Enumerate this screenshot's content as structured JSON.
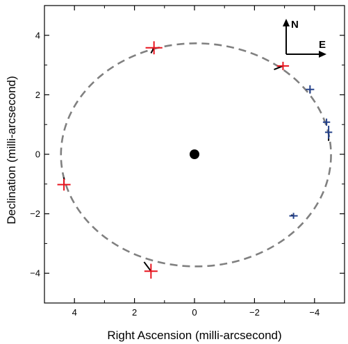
{
  "chart_data": {
    "type": "scatter",
    "title": "",
    "xlabel": "Right Ascension (milli-arcsecond)",
    "ylabel": "Declination (milli-arcsecond)",
    "xlim": [
      -5,
      5
    ],
    "ylim": [
      -5,
      5
    ],
    "x_ticks": [
      -4,
      -2,
      0,
      2,
      4
    ],
    "y_ticks": [
      -4,
      -2,
      0,
      2,
      4
    ],
    "x_tick_labels": [
      "−4",
      "−2",
      "0",
      "2",
      "4"
    ],
    "y_tick_labels": [
      "−4",
      "−2",
      "0",
      "2",
      "4"
    ],
    "x_axis_reversed": true,
    "grid": false,
    "primary_star": {
      "x": 0,
      "y": 0,
      "color": "#000000"
    },
    "orbit": {
      "center": [
        -0.05,
        -0.02
      ],
      "semi_axis_x": 4.5,
      "semi_axis_y": 3.75,
      "style": "dashed",
      "color": "#808080"
    },
    "series": [
      {
        "color": "#e8141e",
        "points": [
          {
            "x": 1.35,
            "y": 3.58,
            "xerr": 0.28,
            "yerr": 0.22,
            "orbit_x": 1.45,
            "orbit_y": 3.4
          },
          {
            "x": -2.95,
            "y": 2.97,
            "xerr": 0.2,
            "yerr": 0.14,
            "orbit_x": -2.65,
            "orbit_y": 2.85
          },
          {
            "x": 4.35,
            "y": -1.02,
            "xerr": 0.22,
            "yerr": 0.2,
            "orbit_x": 4.35,
            "orbit_y": -0.78
          },
          {
            "x": 1.45,
            "y": -3.93,
            "xerr": 0.22,
            "yerr": 0.25,
            "orbit_x": 1.68,
            "orbit_y": -3.62
          }
        ]
      },
      {
        "color": "#24418a",
        "points": [
          {
            "x": -3.85,
            "y": 2.18,
            "xerr": 0.14,
            "yerr": 0.14,
            "orbit_x": -3.85,
            "orbit_y": 2.06
          },
          {
            "x": -4.4,
            "y": 1.08,
            "xerr": 0.12,
            "yerr": 0.12,
            "orbit_x": -4.4,
            "orbit_y": 1.0
          },
          {
            "x": -4.47,
            "y": 0.74,
            "xerr": 0.12,
            "yerr": 0.22,
            "orbit_x": -4.47,
            "orbit_y": 0.45
          },
          {
            "x": -3.3,
            "y": -2.07,
            "xerr": 0.14,
            "yerr": 0.1,
            "orbit_x": -3.22,
            "orbit_y": -2.04
          }
        ]
      }
    ],
    "compass": {
      "north_label": "N",
      "east_label": "E"
    }
  }
}
